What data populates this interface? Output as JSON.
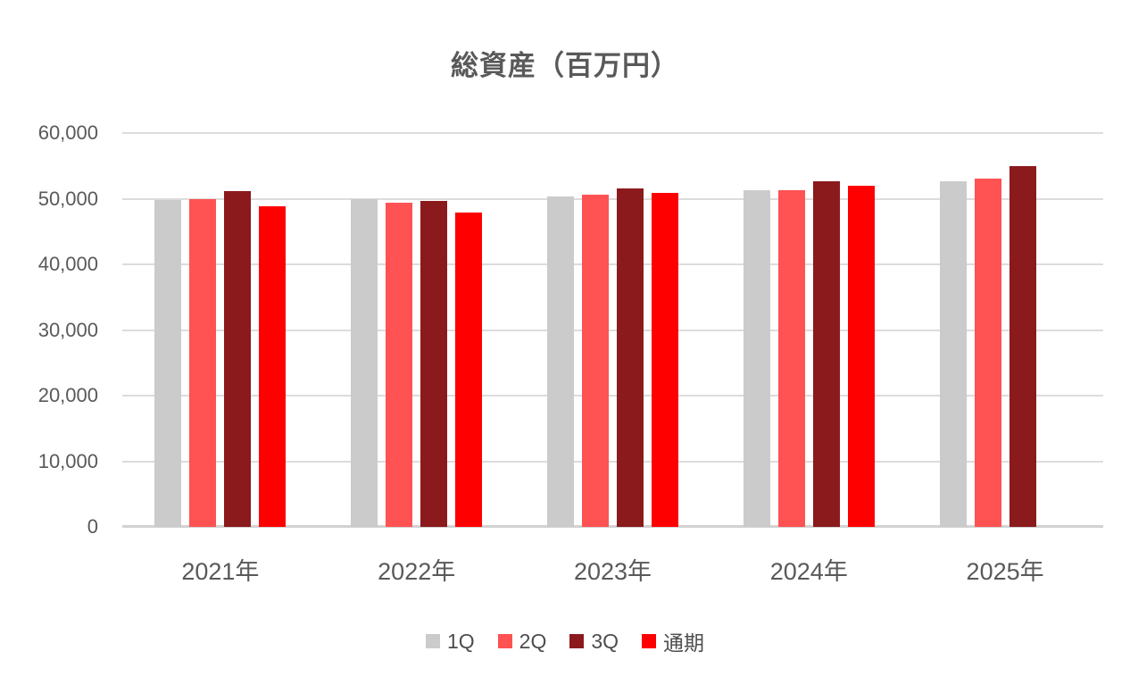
{
  "chart_data": {
    "type": "bar",
    "title": "総資産（百万円）",
    "categories": [
      "2021年",
      "2022年",
      "2023年",
      "2024年",
      "2025年"
    ],
    "series": [
      {
        "key": "1q",
        "name": "1Q",
        "color": "#cbcbcb",
        "values": [
          49800,
          49900,
          50400,
          51300,
          52700
        ]
      },
      {
        "key": "2q",
        "name": "2Q",
        "color": "#ff5252",
        "values": [
          49900,
          49400,
          50600,
          51300,
          53000
        ]
      },
      {
        "key": "3q",
        "name": "3Q",
        "color": "#8b1a1d",
        "values": [
          51100,
          49700,
          51500,
          52700,
          55000
        ]
      },
      {
        "key": "full-year",
        "name": "通期",
        "color": "#ff0000",
        "values": [
          48900,
          47900,
          50900,
          52000,
          null
        ]
      }
    ],
    "ylim": [
      0,
      60000
    ],
    "ytick_interval": 10000,
    "ytick_labels": [
      "0",
      "10,000",
      "20,000",
      "30,000",
      "40,000",
      "50,000",
      "60,000"
    ],
    "xlabel": "",
    "ylabel": "",
    "grid": true,
    "gridline_color": "#dcdcdc",
    "axis_text_color": "#595959",
    "legend_position": "bottom"
  }
}
